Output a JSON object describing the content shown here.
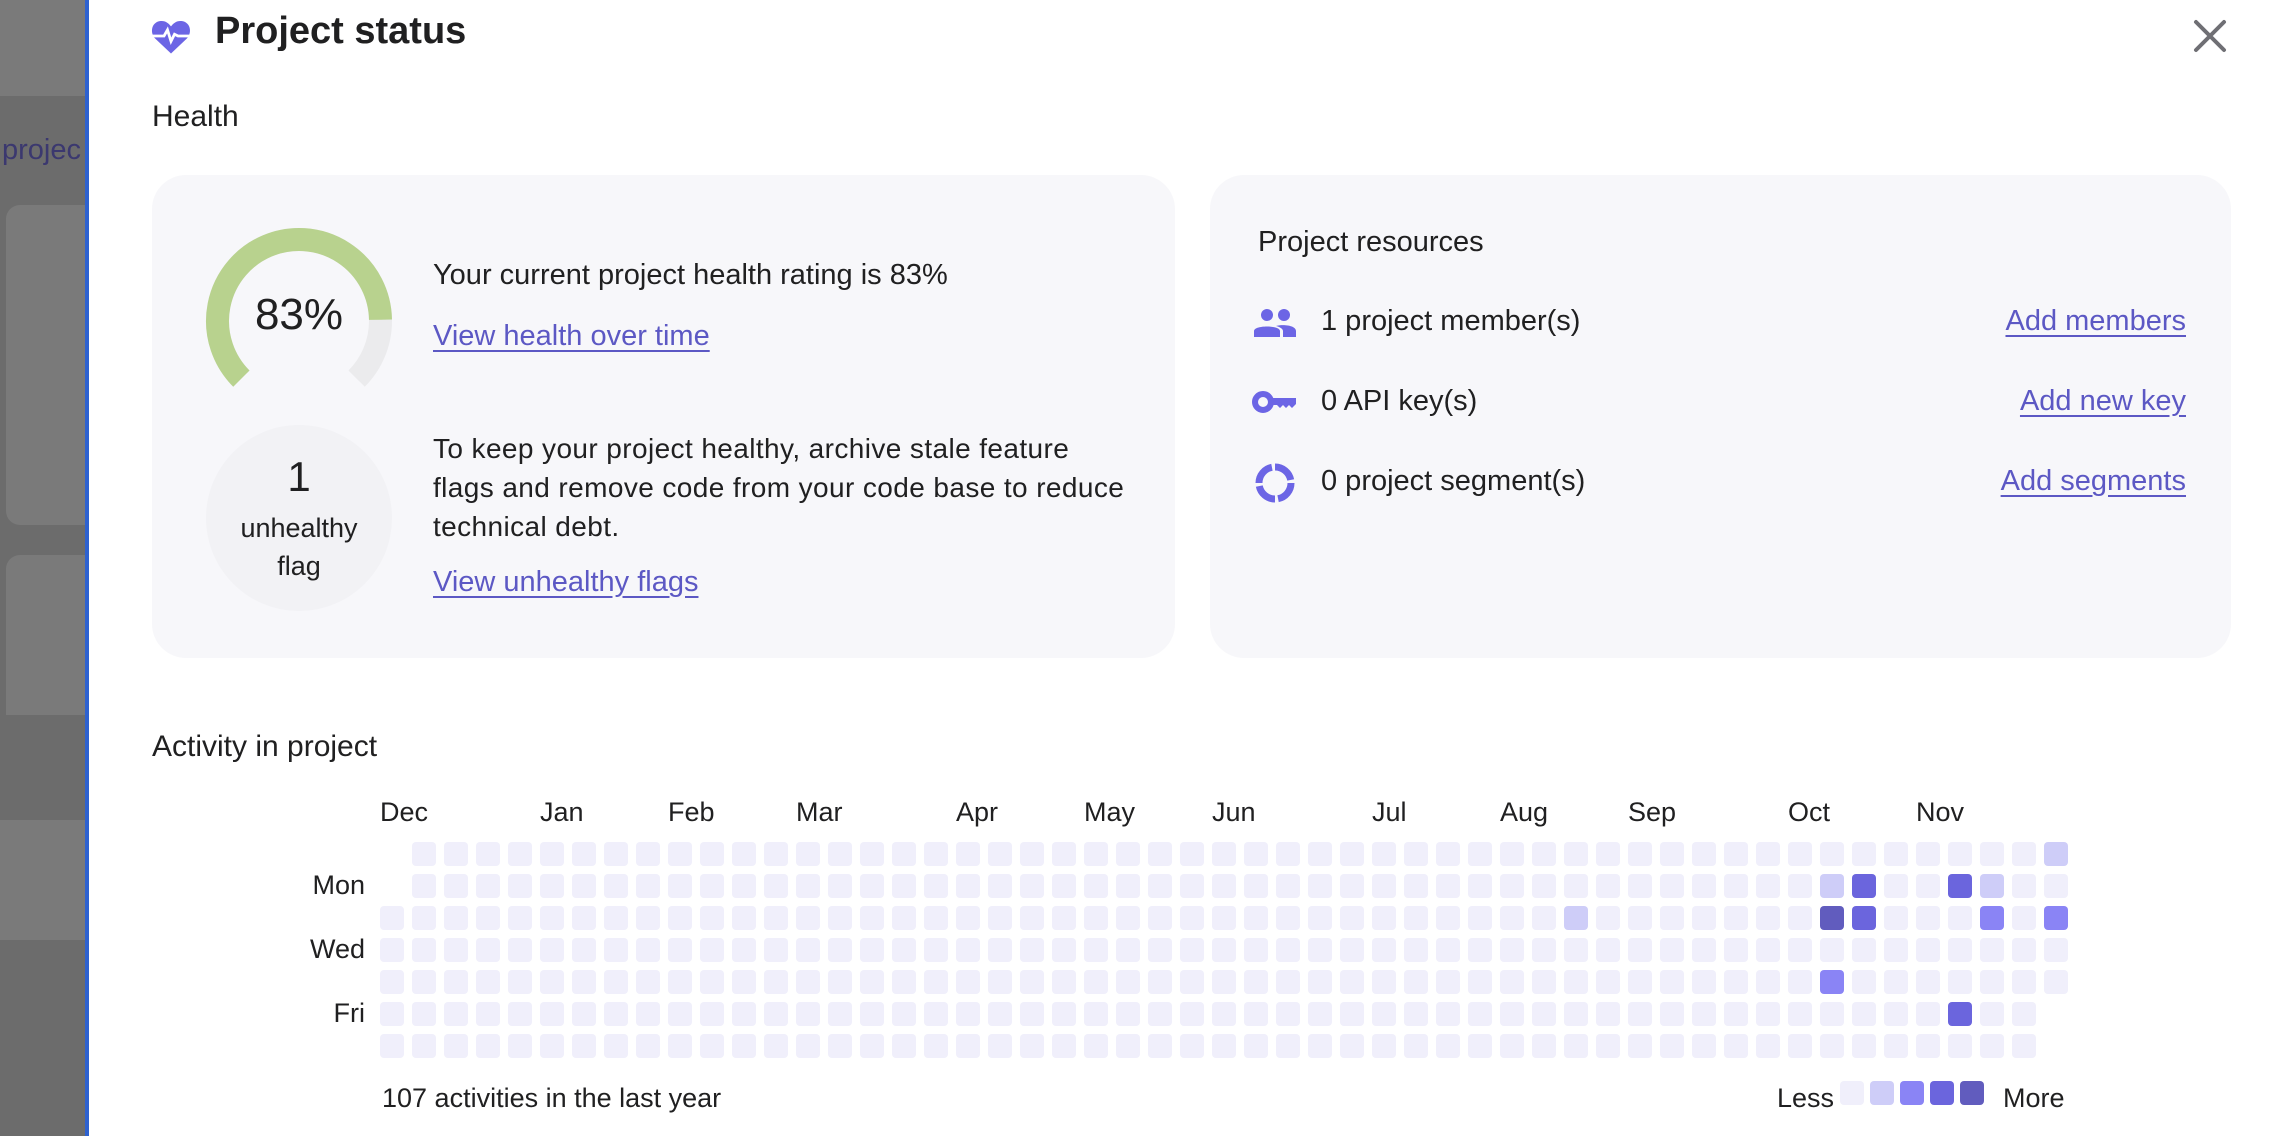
{
  "backdrop": {
    "partial_text": "projec"
  },
  "modal": {
    "title": "Project status",
    "icon": "heart-pulse-icon",
    "close_icon": "close-icon",
    "accent_color": "#6c65e5"
  },
  "health": {
    "heading": "Health",
    "rating_percent": 83,
    "rating_label": "83%",
    "gauge_colors": {
      "filled": "#b8d28e",
      "empty": "#ebebed"
    },
    "rating_text": "Your current project health rating is 83%",
    "view_health_link": "View health over time",
    "unhealthy_count": "1",
    "unhealthy_label_line1": "unhealthy",
    "unhealthy_label_line2": "flag",
    "advice_text": "To keep your project healthy, archive stale feature flags and remove code from your code base to reduce technical debt.",
    "view_unhealthy_link": "View unhealthy flags"
  },
  "resources": {
    "heading": "Project resources",
    "items": [
      {
        "icon": "members-icon",
        "text": "1 project member(s)",
        "link": "Add members"
      },
      {
        "icon": "key-icon",
        "text": "0 API key(s)",
        "link": "Add new key"
      },
      {
        "icon": "segment-icon",
        "text": "0 project segment(s)",
        "link": "Add segments"
      }
    ]
  },
  "activity": {
    "heading": "Activity in project",
    "summary": "107 activities in the last year",
    "legend_less": "Less",
    "legend_more": "More"
  },
  "chart_data": {
    "type": "heatmap",
    "months": [
      {
        "label": "Dec",
        "week": 0
      },
      {
        "label": "Jan",
        "week": 5
      },
      {
        "label": "Feb",
        "week": 9
      },
      {
        "label": "Mar",
        "week": 13
      },
      {
        "label": "Apr",
        "week": 18
      },
      {
        "label": "May",
        "week": 22
      },
      {
        "label": "Jun",
        "week": 26
      },
      {
        "label": "Jul",
        "week": 31
      },
      {
        "label": "Aug",
        "week": 35
      },
      {
        "label": "Sep",
        "week": 39
      },
      {
        "label": "Oct",
        "week": 44
      },
      {
        "label": "Nov",
        "week": 48
      }
    ],
    "weekday_labels": [
      {
        "label": "Mon",
        "row": 1
      },
      {
        "label": "Wed",
        "row": 3
      },
      {
        "label": "Fri",
        "row": 5
      }
    ],
    "level_colors": [
      "#f0effb",
      "#cecdf8",
      "#8a84f5",
      "#6b65dd",
      "#615cbe"
    ],
    "rows": [
      [
        null,
        0,
        0,
        0,
        0,
        0,
        0,
        0,
        0,
        0,
        0,
        0,
        0,
        0,
        0,
        0,
        0,
        0,
        0,
        0,
        0,
        0,
        0,
        0,
        0,
        0,
        0,
        0,
        0,
        0,
        0,
        0,
        0,
        0,
        0,
        0,
        0,
        0,
        0,
        0,
        0,
        0,
        0,
        0,
        0,
        0,
        0,
        0,
        0,
        0,
        0,
        0,
        1
      ],
      [
        null,
        0,
        0,
        0,
        0,
        0,
        0,
        0,
        0,
        0,
        0,
        0,
        0,
        0,
        0,
        0,
        0,
        0,
        0,
        0,
        0,
        0,
        0,
        0,
        0,
        0,
        0,
        0,
        0,
        0,
        0,
        0,
        0,
        0,
        0,
        0,
        0,
        0,
        0,
        0,
        0,
        0,
        0,
        0,
        0,
        1,
        3,
        0,
        0,
        3,
        1,
        0,
        0
      ],
      [
        0,
        0,
        0,
        0,
        0,
        0,
        0,
        0,
        0,
        0,
        0,
        0,
        0,
        0,
        0,
        0,
        0,
        0,
        0,
        0,
        0,
        0,
        0,
        0,
        0,
        0,
        0,
        0,
        0,
        0,
        0,
        0,
        0,
        0,
        0,
        0,
        0,
        1,
        0,
        0,
        0,
        0,
        0,
        0,
        0,
        4,
        3,
        0,
        0,
        0,
        2,
        0,
        2
      ],
      [
        0,
        0,
        0,
        0,
        0,
        0,
        0,
        0,
        0,
        0,
        0,
        0,
        0,
        0,
        0,
        0,
        0,
        0,
        0,
        0,
        0,
        0,
        0,
        0,
        0,
        0,
        0,
        0,
        0,
        0,
        0,
        0,
        0,
        0,
        0,
        0,
        0,
        0,
        0,
        0,
        0,
        0,
        0,
        0,
        0,
        0,
        0,
        0,
        0,
        0,
        0,
        0,
        0
      ],
      [
        0,
        0,
        0,
        0,
        0,
        0,
        0,
        0,
        0,
        0,
        0,
        0,
        0,
        0,
        0,
        0,
        0,
        0,
        0,
        0,
        0,
        0,
        0,
        0,
        0,
        0,
        0,
        0,
        0,
        0,
        0,
        0,
        0,
        0,
        0,
        0,
        0,
        0,
        0,
        0,
        0,
        0,
        0,
        0,
        0,
        2,
        0,
        0,
        0,
        0,
        0,
        0,
        0
      ],
      [
        0,
        0,
        0,
        0,
        0,
        0,
        0,
        0,
        0,
        0,
        0,
        0,
        0,
        0,
        0,
        0,
        0,
        0,
        0,
        0,
        0,
        0,
        0,
        0,
        0,
        0,
        0,
        0,
        0,
        0,
        0,
        0,
        0,
        0,
        0,
        0,
        0,
        0,
        0,
        0,
        0,
        0,
        0,
        0,
        0,
        0,
        0,
        0,
        0,
        3,
        0,
        0,
        null
      ],
      [
        0,
        0,
        0,
        0,
        0,
        0,
        0,
        0,
        0,
        0,
        0,
        0,
        0,
        0,
        0,
        0,
        0,
        0,
        0,
        0,
        0,
        0,
        0,
        0,
        0,
        0,
        0,
        0,
        0,
        0,
        0,
        0,
        0,
        0,
        0,
        0,
        0,
        0,
        0,
        0,
        0,
        0,
        0,
        0,
        0,
        0,
        0,
        0,
        0,
        0,
        0,
        0,
        null
      ]
    ]
  }
}
